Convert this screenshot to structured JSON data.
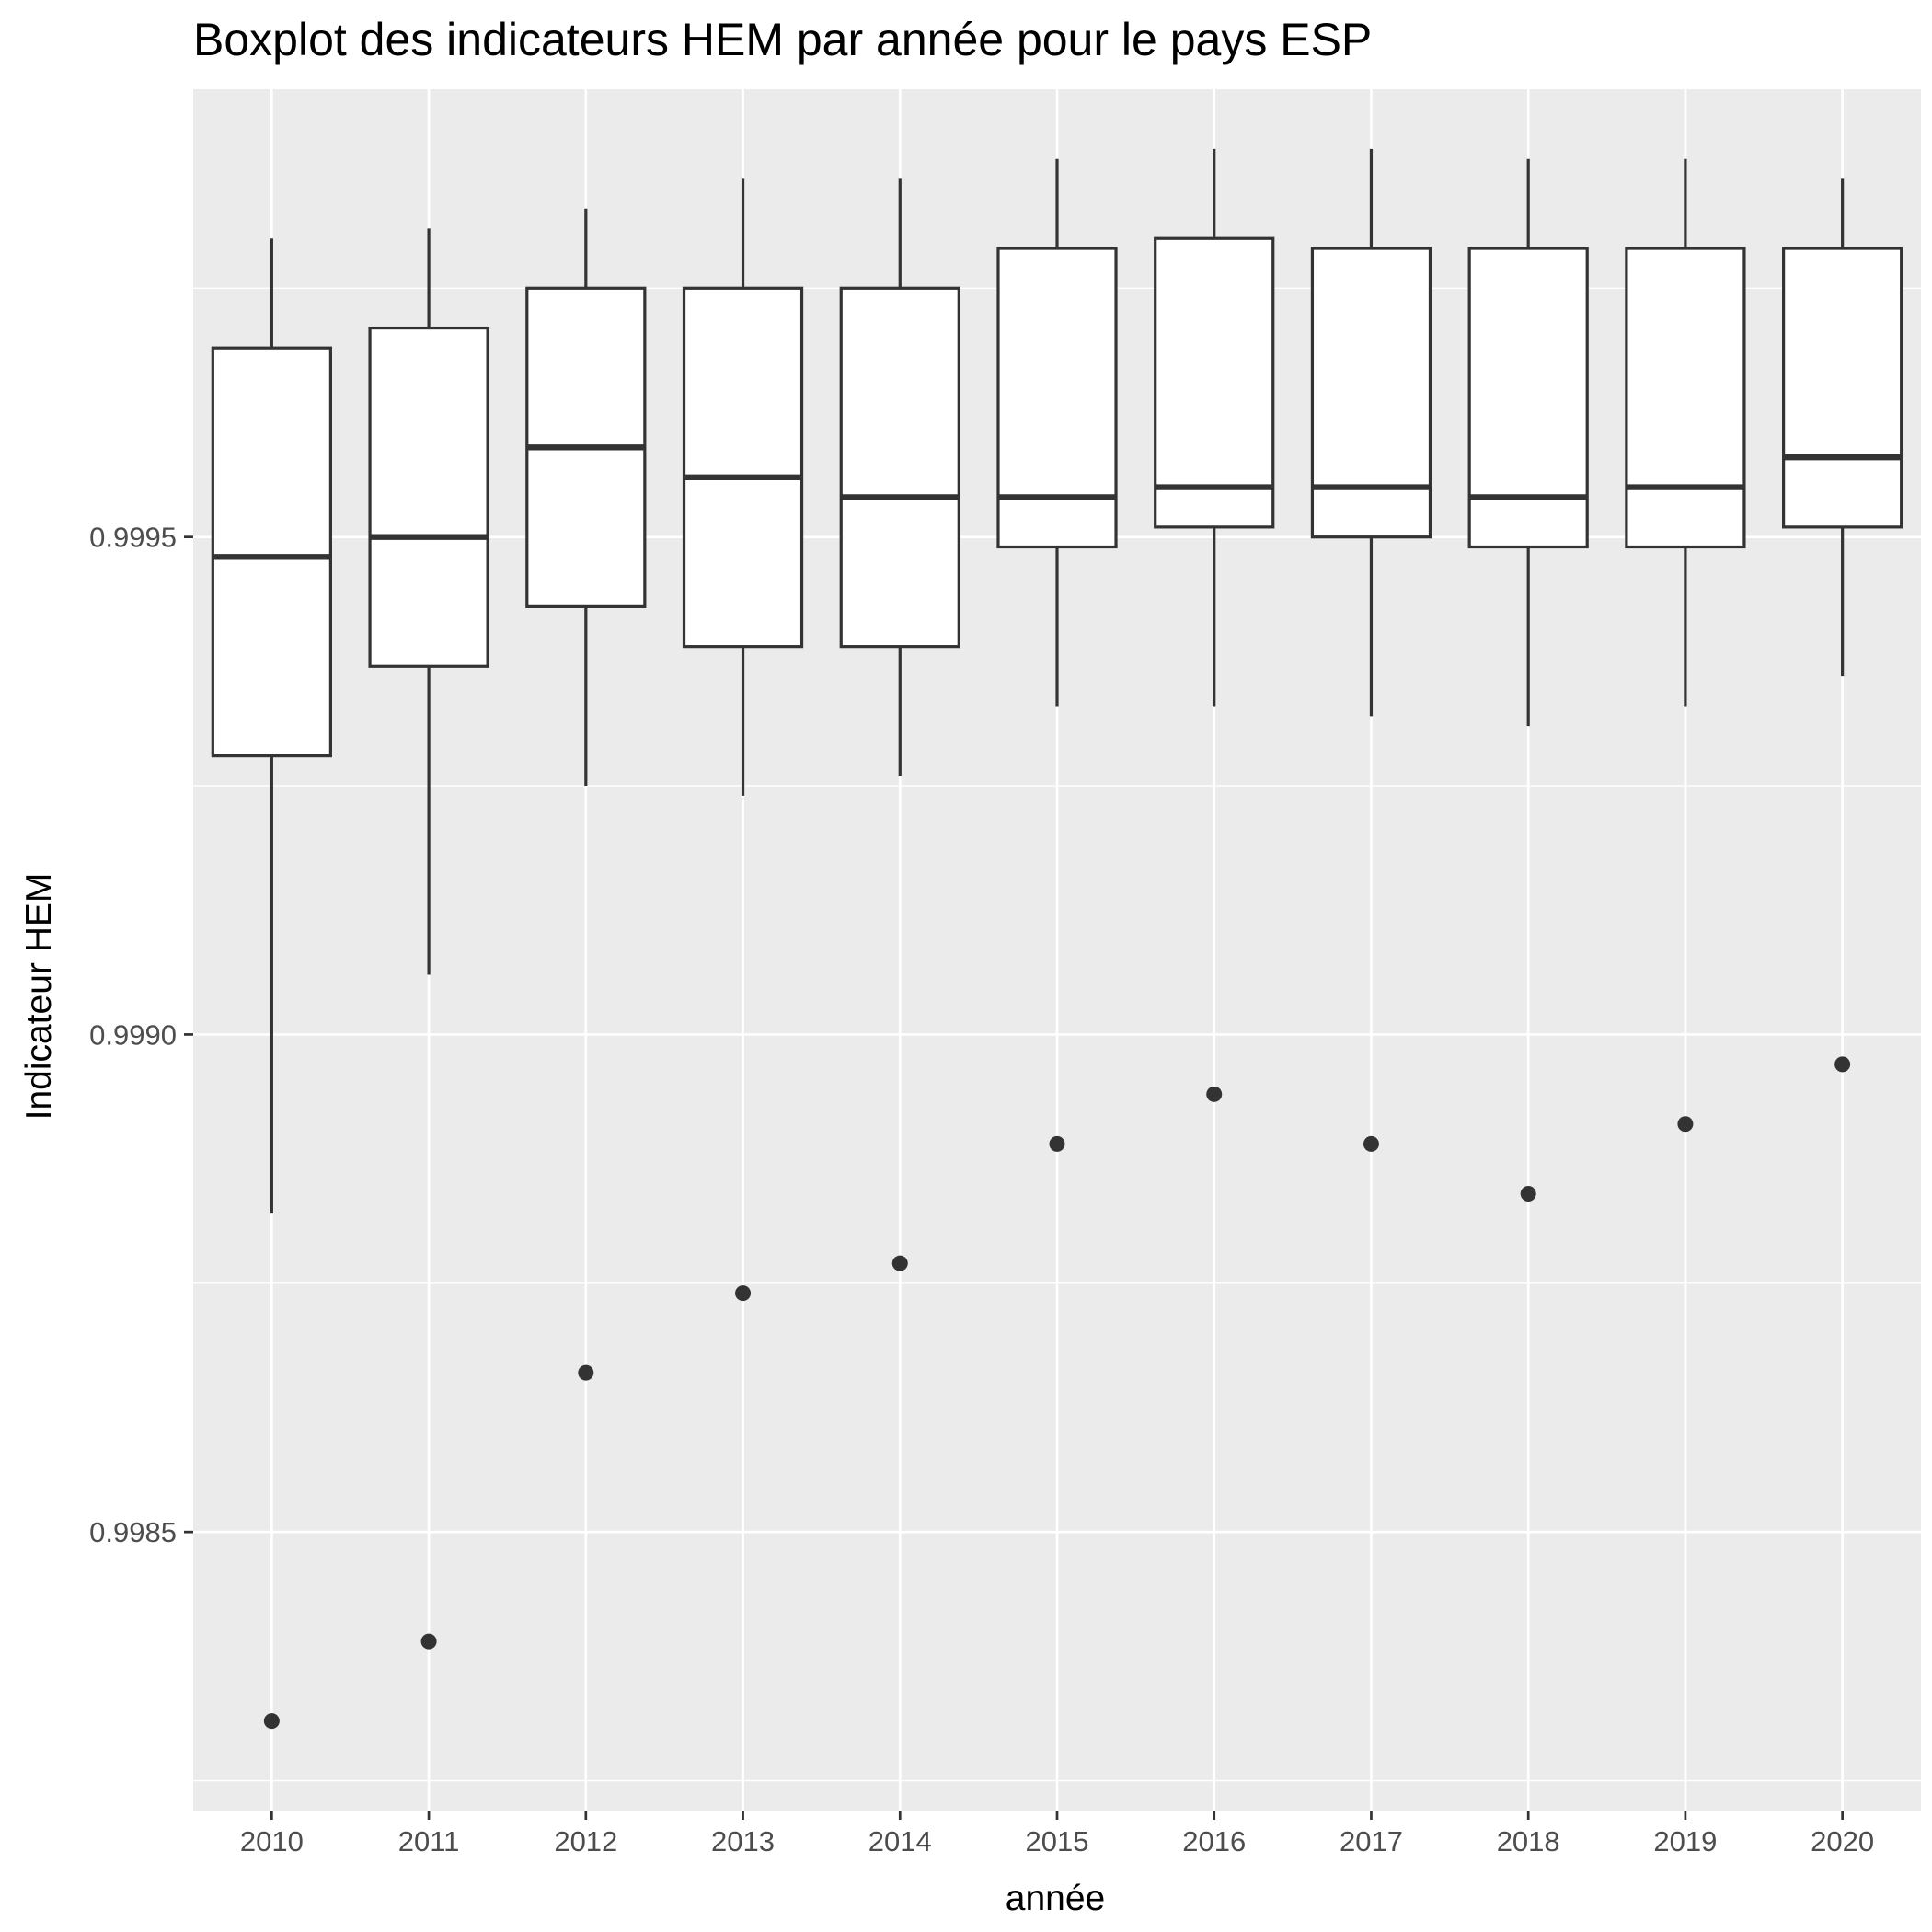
{
  "chart_data": {
    "type": "boxplot",
    "title": "Boxplot des indicateurs HEM par année pour le pays ESP",
    "xlabel": "année",
    "ylabel": "Indicateur HEM",
    "ylim": [
      0.99822,
      0.99995
    ],
    "y_ticks": [
      {
        "value": 0.9985,
        "label": "0.9985"
      },
      {
        "value": 0.999,
        "label": "0.9990"
      },
      {
        "value": 0.9995,
        "label": "0.9995"
      }
    ],
    "grid": true,
    "colors": {
      "panel_background": "#ebebeb",
      "grid_line": "#ffffff",
      "box_fill": "#ffffff",
      "box_stroke": "#333333",
      "outlier": "#333333",
      "tick_text": "#4d4d4d"
    },
    "categories": [
      "2010",
      "2011",
      "2012",
      "2013",
      "2014",
      "2015",
      "2016",
      "2017",
      "2018",
      "2019",
      "2020"
    ],
    "boxes": [
      {
        "category": "2010",
        "whisker_low": 0.99882,
        "q1": 0.99928,
        "median": 0.99948,
        "q3": 0.99969,
        "whisker_high": 0.9998,
        "outliers": [
          0.99831
        ]
      },
      {
        "category": "2011",
        "whisker_low": 0.99906,
        "q1": 0.99937,
        "median": 0.9995,
        "q3": 0.99971,
        "whisker_high": 0.99981,
        "outliers": [
          0.99839
        ]
      },
      {
        "category": "2012",
        "whisker_low": 0.99925,
        "q1": 0.99943,
        "median": 0.99959,
        "q3": 0.99975,
        "whisker_high": 0.99983,
        "outliers": [
          0.99866
        ]
      },
      {
        "category": "2013",
        "whisker_low": 0.99924,
        "q1": 0.99939,
        "median": 0.99956,
        "q3": 0.99975,
        "whisker_high": 0.99986,
        "outliers": [
          0.99874
        ]
      },
      {
        "category": "2014",
        "whisker_low": 0.99926,
        "q1": 0.99939,
        "median": 0.99954,
        "q3": 0.99975,
        "whisker_high": 0.99986,
        "outliers": [
          0.99877
        ]
      },
      {
        "category": "2015",
        "whisker_low": 0.99933,
        "q1": 0.99949,
        "median": 0.99954,
        "q3": 0.99979,
        "whisker_high": 0.99988,
        "outliers": [
          0.99889
        ]
      },
      {
        "category": "2016",
        "whisker_low": 0.99933,
        "q1": 0.99951,
        "median": 0.99955,
        "q3": 0.9998,
        "whisker_high": 0.99989,
        "outliers": [
          0.99894
        ]
      },
      {
        "category": "2017",
        "whisker_low": 0.99932,
        "q1": 0.9995,
        "median": 0.99955,
        "q3": 0.99979,
        "whisker_high": 0.99989,
        "outliers": [
          0.99889
        ]
      },
      {
        "category": "2018",
        "whisker_low": 0.99931,
        "q1": 0.99949,
        "median": 0.99954,
        "q3": 0.99979,
        "whisker_high": 0.99988,
        "outliers": [
          0.99884
        ]
      },
      {
        "category": "2019",
        "whisker_low": 0.99933,
        "q1": 0.99949,
        "median": 0.99955,
        "q3": 0.99979,
        "whisker_high": 0.99988,
        "outliers": [
          0.99891
        ]
      },
      {
        "category": "2020",
        "whisker_low": 0.99936,
        "q1": 0.99951,
        "median": 0.99958,
        "q3": 0.99979,
        "whisker_high": 0.99986,
        "outliers": [
          0.99897
        ]
      }
    ]
  }
}
